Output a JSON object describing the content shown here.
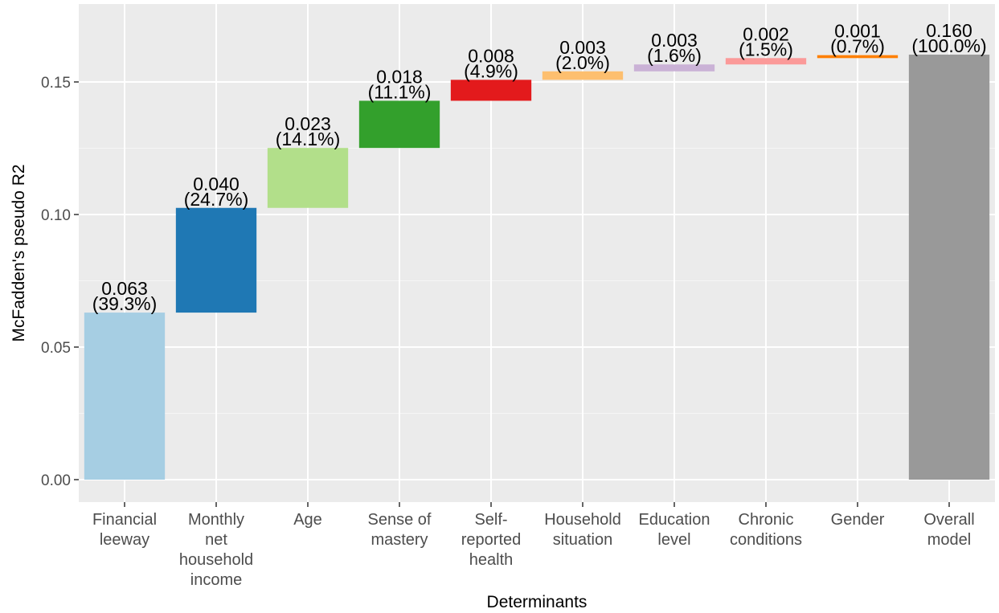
{
  "chart_data": {
    "type": "bar",
    "subtype": "waterfall",
    "title": "",
    "xlabel": "Determinants",
    "ylabel": "McFadden's pseudo R2",
    "ylim": [
      0,
      0.175
    ],
    "yticks": [
      "0.00",
      "0.05",
      "0.10",
      "0.15"
    ],
    "ytick_values": [
      0,
      0.05,
      0.1,
      0.15
    ],
    "grid": true,
    "legend": "none",
    "panel_background": "#ebebeb",
    "categories": [
      {
        "label_lines": [
          "Financial",
          "leeway"
        ],
        "value": 0.063,
        "value_label": "0.063",
        "percent_label": "(39.3%)",
        "start": 0.0,
        "end": 0.063,
        "color": "#a6cee3"
      },
      {
        "label_lines": [
          "Monthly",
          "net",
          "household",
          "income"
        ],
        "value": 0.04,
        "value_label": "0.040",
        "percent_label": "(24.7%)",
        "start": 0.063,
        "end": 0.1025,
        "color": "#1f78b4"
      },
      {
        "label_lines": [
          "Age"
        ],
        "value": 0.023,
        "value_label": "0.023",
        "percent_label": "(14.1%)",
        "start": 0.1025,
        "end": 0.1251,
        "color": "#b2df8a"
      },
      {
        "label_lines": [
          "Sense of",
          "mastery"
        ],
        "value": 0.018,
        "value_label": "0.018",
        "percent_label": "(11.1%)",
        "start": 0.1251,
        "end": 0.1429,
        "color": "#33a02c"
      },
      {
        "label_lines": [
          "Self-",
          "reported",
          "health"
        ],
        "value": 0.008,
        "value_label": "0.008",
        "percent_label": "(4.9%)",
        "start": 0.1429,
        "end": 0.1508,
        "color": "#e31a1c"
      },
      {
        "label_lines": [
          "Household",
          "situation"
        ],
        "value": 0.003,
        "value_label": "0.003",
        "percent_label": "(2.0%)",
        "start": 0.1508,
        "end": 0.154,
        "color": "#fdbf6f"
      },
      {
        "label_lines": [
          "Education",
          "level"
        ],
        "value": 0.003,
        "value_label": "0.003",
        "percent_label": "(1.6%)",
        "start": 0.154,
        "end": 0.1566,
        "color": "#cab2d6"
      },
      {
        "label_lines": [
          "Chronic",
          "conditions"
        ],
        "value": 0.002,
        "value_label": "0.002",
        "percent_label": "(1.5%)",
        "start": 0.1566,
        "end": 0.159,
        "color": "#fb9a99"
      },
      {
        "label_lines": [
          "Gender"
        ],
        "value": 0.001,
        "value_label": "0.001",
        "percent_label": "(0.7%)",
        "start": 0.159,
        "end": 0.1601,
        "color": "#ff7f00"
      },
      {
        "label_lines": [
          "Overall",
          "model"
        ],
        "value": 0.16,
        "value_label": "0.160",
        "percent_label": "(100.0%)",
        "start": 0.0,
        "end": 0.1603,
        "color": "#999999"
      }
    ]
  }
}
